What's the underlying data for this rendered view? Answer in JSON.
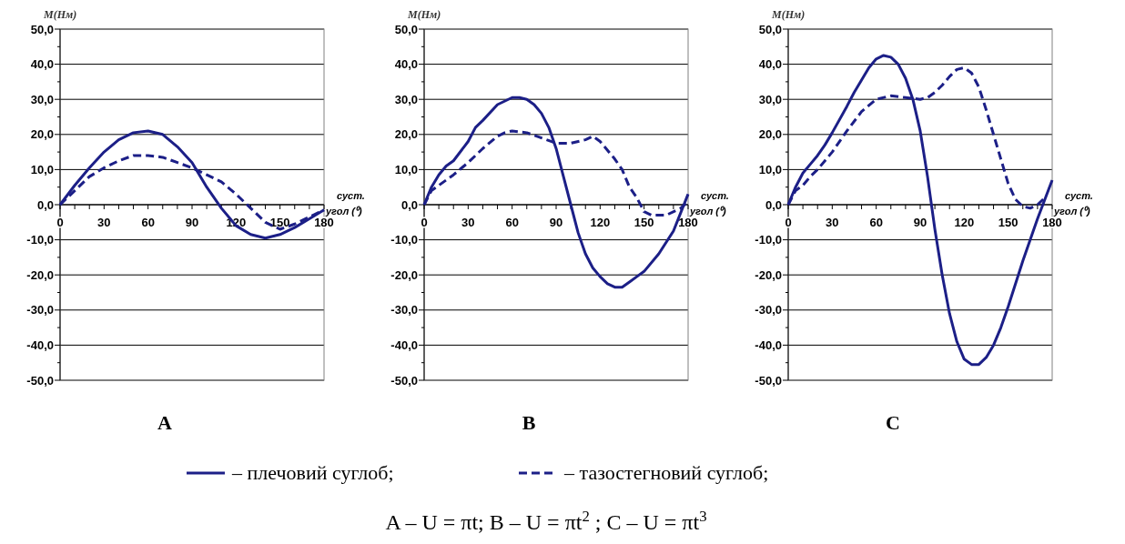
{
  "chart_data": [
    {
      "type": "line",
      "title": "A",
      "xlabel": "суст. угол (⁰)",
      "ylabel": "M(Нм)",
      "xlim": [
        0,
        180
      ],
      "ylim": [
        -50,
        50
      ],
      "grid": "y",
      "legend": "bottom",
      "xticks": [
        0,
        {
          "value": 10,
          "label": null
        },
        {
          "value": 20,
          "label": null
        },
        30,
        {
          "value": 40,
          "label": null
        },
        {
          "value": 50,
          "label": null
        },
        60,
        {
          "value": 70,
          "label": null
        },
        {
          "value": 80,
          "label": null
        },
        90,
        {
          "value": 100,
          "label": null
        },
        {
          "value": 110,
          "label": null
        },
        120,
        {
          "value": 130,
          "label": null
        },
        {
          "value": 140,
          "label": null
        },
        150,
        {
          "value": 160,
          "label": null
        },
        {
          "value": 170,
          "label": null
        },
        180
      ],
      "yticks": [
        {
          "value": -50,
          "label": "-50,0"
        },
        {
          "value": -45,
          "label": null
        },
        {
          "value": -40,
          "label": "-40,0"
        },
        {
          "value": -35,
          "label": null
        },
        {
          "value": -30,
          "label": "-30,0"
        },
        {
          "value": -25,
          "label": null
        },
        {
          "value": -20,
          "label": "-20,0"
        },
        {
          "value": -15,
          "label": null
        },
        {
          "value": -10,
          "label": "-10,0"
        },
        {
          "value": -5,
          "label": null
        },
        {
          "value": 0,
          "label": "0,0"
        },
        {
          "value": 5,
          "label": null
        },
        {
          "value": 10,
          "label": "10,0"
        },
        {
          "value": 15,
          "label": null
        },
        {
          "value": 20,
          "label": "20,0"
        },
        {
          "value": 25,
          "label": null
        },
        {
          "value": 30,
          "label": "30,0"
        },
        {
          "value": 35,
          "label": null
        },
        {
          "value": 40,
          "label": "40,0"
        },
        {
          "value": 45,
          "label": null
        },
        {
          "value": 50,
          "label": "50,0"
        }
      ],
      "annotations": [
        "A – U = πt; B – U = πt$^{2}$ ; C – U = πt$^{3}$"
      ],
      "series": [
        {
          "name": "– плечовий суглоб;",
          "color": "#1c1f87",
          "line_style": "solid",
          "x": [
            0,
            10,
            20,
            30,
            40,
            50,
            60,
            70,
            80,
            90,
            100,
            110,
            120,
            130,
            140,
            150,
            160,
            170,
            180
          ],
          "values": [
            0,
            5.5,
            10.5,
            15,
            18.5,
            20.5,
            21,
            20,
            16.5,
            12,
            5,
            -1,
            -6,
            -8.5,
            -9.5,
            -8.5,
            -6.5,
            -4,
            -1.5
          ]
        },
        {
          "name": "– тазостегновий суглоб;",
          "color": "#1c1f87",
          "line_style": "dashed",
          "x": [
            0,
            10,
            20,
            30,
            40,
            50,
            60,
            70,
            80,
            90,
            100,
            110,
            120,
            130,
            140,
            150,
            160,
            170,
            180
          ],
          "values": [
            0,
            4,
            8,
            10.5,
            12.5,
            14,
            14,
            13.5,
            12,
            10.5,
            8.5,
            6.5,
            3,
            -1,
            -5,
            -7,
            -5.5,
            -3.5,
            -1.5
          ]
        }
      ]
    },
    {
      "type": "line",
      "title": "B",
      "xlabel": "суст. угол (⁰)",
      "ylabel": "M(Нм)",
      "xlim": [
        0,
        180
      ],
      "ylim": [
        -50,
        50
      ],
      "grid": "y",
      "xticks": [
        0,
        {
          "value": 10,
          "label": null
        },
        {
          "value": 20,
          "label": null
        },
        30,
        {
          "value": 40,
          "label": null
        },
        {
          "value": 50,
          "label": null
        },
        60,
        {
          "value": 70,
          "label": null
        },
        {
          "value": 80,
          "label": null
        },
        90,
        {
          "value": 100,
          "label": null
        },
        {
          "value": 110,
          "label": null
        },
        120,
        {
          "value": 130,
          "label": null
        },
        {
          "value": 140,
          "label": null
        },
        150,
        {
          "value": 160,
          "label": null
        },
        {
          "value": 170,
          "label": null
        },
        180
      ],
      "yticks": [
        {
          "value": -50,
          "label": "-50,0"
        },
        {
          "value": -45,
          "label": null
        },
        {
          "value": -40,
          "label": "-40,0"
        },
        {
          "value": -35,
          "label": null
        },
        {
          "value": -30,
          "label": "-30,0"
        },
        {
          "value": -25,
          "label": null
        },
        {
          "value": -20,
          "label": "-20,0"
        },
        {
          "value": -15,
          "label": null
        },
        {
          "value": -10,
          "label": "-10,0"
        },
        {
          "value": -5,
          "label": null
        },
        {
          "value": 0,
          "label": "0,0"
        },
        {
          "value": 5,
          "label": null
        },
        {
          "value": 10,
          "label": "10,0"
        },
        {
          "value": 15,
          "label": null
        },
        {
          "value": 20,
          "label": "20,0"
        },
        {
          "value": 25,
          "label": null
        },
        {
          "value": 30,
          "label": "30,0"
        },
        {
          "value": 35,
          "label": null
        },
        {
          "value": 40,
          "label": "40,0"
        },
        {
          "value": 45,
          "label": null
        },
        {
          "value": 50,
          "label": "50,0"
        }
      ],
      "series": [
        {
          "color": "#1c1f87",
          "line_style": "solid",
          "x": [
            0,
            5,
            10,
            15,
            20,
            30,
            35,
            40,
            50,
            60,
            65,
            70,
            75,
            80,
            85,
            90,
            95,
            100,
            105,
            110,
            115,
            120,
            125,
            130,
            135,
            140,
            145,
            150,
            160,
            170,
            180
          ],
          "values": [
            0,
            5,
            8.5,
            11,
            12.5,
            18,
            22,
            24,
            28.5,
            30.5,
            30.5,
            30,
            28.5,
            26,
            22,
            16,
            8,
            0,
            -8,
            -14,
            -18,
            -20.5,
            -22.5,
            -23.5,
            -23.5,
            -22,
            -20.5,
            -19,
            -14,
            -7.5,
            3
          ]
        },
        {
          "color": "#1c1f87",
          "line_style": "dashed",
          "x": [
            0,
            5,
            10,
            15,
            20,
            30,
            40,
            50,
            55,
            60,
            70,
            80,
            90,
            100,
            110,
            115,
            120,
            130,
            135,
            140,
            145,
            150,
            155,
            165,
            175,
            180
          ],
          "values": [
            0,
            4,
            5.5,
            7,
            8.5,
            12,
            16,
            19.5,
            20.5,
            21,
            20.5,
            19,
            17.5,
            17.5,
            18.5,
            19.5,
            18,
            13,
            10,
            5,
            2,
            -2,
            -3,
            -3,
            -1,
            1
          ]
        }
      ]
    },
    {
      "type": "line",
      "title": "C",
      "xlabel": "суст. угол (⁰)",
      "ylabel": "M(Нм)",
      "xlim": [
        0,
        180
      ],
      "ylim": [
        -50,
        50
      ],
      "grid": "y",
      "xticks": [
        0,
        {
          "value": 10,
          "label": null
        },
        {
          "value": 20,
          "label": null
        },
        30,
        {
          "value": 40,
          "label": null
        },
        {
          "value": 50,
          "label": null
        },
        60,
        {
          "value": 70,
          "label": null
        },
        {
          "value": 80,
          "label": null
        },
        90,
        {
          "value": 100,
          "label": null
        },
        {
          "value": 110,
          "label": null
        },
        120,
        {
          "value": 130,
          "label": null
        },
        {
          "value": 140,
          "label": null
        },
        150,
        {
          "value": 160,
          "label": null
        },
        {
          "value": 170,
          "label": null
        },
        180
      ],
      "yticks": [
        {
          "value": -50,
          "label": "-50,0"
        },
        {
          "value": -45,
          "label": null
        },
        {
          "value": -40,
          "label": "-40,0"
        },
        {
          "value": -35,
          "label": null
        },
        {
          "value": -30,
          "label": "-30,0"
        },
        {
          "value": -25,
          "label": null
        },
        {
          "value": -20,
          "label": "-20,0"
        },
        {
          "value": -15,
          "label": null
        },
        {
          "value": -10,
          "label": "-10,0"
        },
        {
          "value": -5,
          "label": null
        },
        {
          "value": 0,
          "label": "0,0"
        },
        {
          "value": 5,
          "label": null
        },
        {
          "value": 10,
          "label": "10,0"
        },
        {
          "value": 15,
          "label": null
        },
        {
          "value": 20,
          "label": "20,0"
        },
        {
          "value": 25,
          "label": null
        },
        {
          "value": 30,
          "label": "30,0"
        },
        {
          "value": 35,
          "label": null
        },
        {
          "value": 40,
          "label": "40,0"
        },
        {
          "value": 45,
          "label": null
        },
        {
          "value": 50,
          "label": "50,0"
        }
      ],
      "series": [
        {
          "color": "#1c1f87",
          "line_style": "solid",
          "x": [
            0,
            5,
            10,
            15,
            20,
            25,
            30,
            40,
            45,
            50,
            55,
            60,
            65,
            70,
            75,
            80,
            85,
            90,
            95,
            100,
            105,
            110,
            115,
            120,
            125,
            130,
            135,
            140,
            145,
            150,
            160,
            170,
            175,
            180
          ],
          "values": [
            0,
            5,
            9,
            11.5,
            14,
            17,
            20.5,
            28,
            32,
            35.5,
            39,
            41.5,
            42.5,
            42,
            40,
            36,
            30,
            21,
            8,
            -7,
            -20,
            -31,
            -39,
            -44,
            -45.5,
            -45.5,
            -43.5,
            -40,
            -35,
            -29,
            -16,
            -4,
            1.5,
            7
          ]
        },
        {
          "color": "#1c1f87",
          "line_style": "dashed",
          "x": [
            0,
            5,
            10,
            15,
            20,
            30,
            40,
            50,
            60,
            70,
            80,
            90,
            95,
            100,
            105,
            110,
            115,
            120,
            125,
            130,
            135,
            140,
            145,
            150,
            155,
            160,
            165,
            170,
            175
          ],
          "values": [
            0,
            4,
            5.5,
            8,
            10,
            15,
            21,
            26.5,
            30,
            31,
            30.5,
            30,
            30.5,
            32,
            34,
            36.5,
            38.5,
            39,
            37.5,
            33.5,
            27,
            20,
            13,
            6,
            1.5,
            -0.5,
            -1,
            0,
            2
          ]
        }
      ]
    }
  ]
}
